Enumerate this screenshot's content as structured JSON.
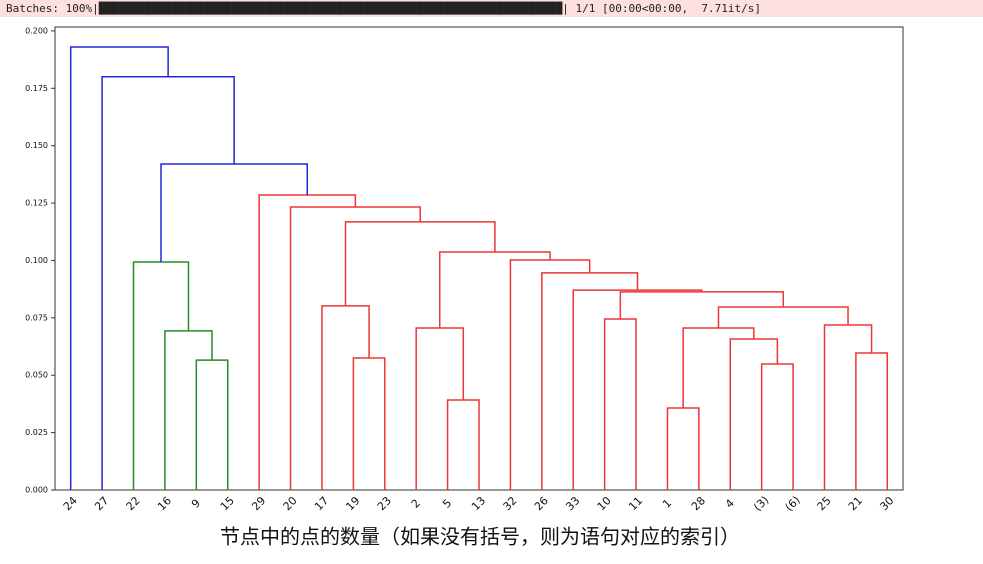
{
  "progress_bar": {
    "text": "Batches: 100%|██████████████████████████████████████████████████████████████████████| 1/1 [00:00<00:00,  7.71it/s]"
  },
  "chart_data": {
    "type": "dendrogram",
    "xlabel": "节点中的点的数量（如果没有括号，则为语句对应的索引）",
    "categories": [
      "24",
      "27",
      "22",
      "16",
      "9",
      "15",
      "29",
      "20",
      "17",
      "19",
      "23",
      "2",
      "5",
      "13",
      "32",
      "26",
      "33",
      "10",
      "11",
      "1",
      "28",
      "4",
      "(3)",
      "(6)",
      "25",
      "21",
      "30"
    ],
    "ylim": [
      0,
      0.2017
    ],
    "yticks": [
      {
        "value": 0,
        "label": "0.000"
      },
      {
        "value": 0.025,
        "label": "0.025"
      },
      {
        "value": 0.05,
        "label": "0.050"
      },
      {
        "value": 0.075,
        "label": "0.075"
      },
      {
        "value": 0.1,
        "label": "0.100"
      },
      {
        "value": 0.125,
        "label": "0.125"
      },
      {
        "value": 0.15,
        "label": "0.150"
      },
      {
        "value": 0.175,
        "label": "0.175"
      },
      {
        "value": 0.2,
        "label": "0.200"
      }
    ],
    "links": [
      {
        "children": [
          4,
          5
        ],
        "height": 0.0566,
        "color": "#2a8a2a"
      },
      {
        "children": [
          3,
          27
        ],
        "height": 0.0693,
        "color": "#2a8a2a"
      },
      {
        "children": [
          2,
          28
        ],
        "height": 0.0993,
        "color": "#2a8a2a"
      },
      {
        "children": [
          9,
          10
        ],
        "height": 0.0575,
        "color": "#ee3535"
      },
      {
        "children": [
          8,
          30
        ],
        "height": 0.0802,
        "color": "#ee3535"
      },
      {
        "children": [
          12,
          13
        ],
        "height": 0.0392,
        "color": "#ee3535"
      },
      {
        "children": [
          11,
          32
        ],
        "height": 0.0706,
        "color": "#ee3535"
      },
      {
        "children": [
          19,
          20
        ],
        "height": 0.0357,
        "color": "#ee3535"
      },
      {
        "children": [
          22,
          23
        ],
        "height": 0.0549,
        "color": "#ee3535"
      },
      {
        "children": [
          21,
          35
        ],
        "height": 0.0658,
        "color": "#ee3535"
      },
      {
        "children": [
          34,
          36
        ],
        "height": 0.0706,
        "color": "#ee3535"
      },
      {
        "children": [
          25,
          26
        ],
        "height": 0.0597,
        "color": "#ee3535"
      },
      {
        "children": [
          24,
          38
        ],
        "height": 0.0719,
        "color": "#ee3535"
      },
      {
        "children": [
          37,
          39
        ],
        "height": 0.0797,
        "color": "#ee3535"
      },
      {
        "children": [
          17,
          18
        ],
        "height": 0.0745,
        "color": "#ee3535"
      },
      {
        "children": [
          41,
          40
        ],
        "height": 0.0863,
        "color": "#ee3535"
      },
      {
        "children": [
          16,
          42
        ],
        "height": 0.0871,
        "color": "#ee3535"
      },
      {
        "children": [
          15,
          43
        ],
        "height": 0.0946,
        "color": "#ee3535"
      },
      {
        "children": [
          14,
          44
        ],
        "height": 0.1002,
        "color": "#ee3535"
      },
      {
        "children": [
          33,
          45
        ],
        "height": 0.1037,
        "color": "#ee3535"
      },
      {
        "children": [
          31,
          46
        ],
        "height": 0.1168,
        "color": "#ee3535"
      },
      {
        "children": [
          7,
          47
        ],
        "height": 0.1233,
        "color": "#ee3535"
      },
      {
        "children": [
          6,
          48
        ],
        "height": 0.1285,
        "color": "#ee3535"
      },
      {
        "children": [
          29,
          49
        ],
        "height": 0.142,
        "color": "#2525dd"
      },
      {
        "children": [
          1,
          50
        ],
        "height": 0.18,
        "color": "#2525dd"
      },
      {
        "children": [
          0,
          51
        ],
        "height": 0.193,
        "color": "#2525dd"
      }
    ]
  }
}
